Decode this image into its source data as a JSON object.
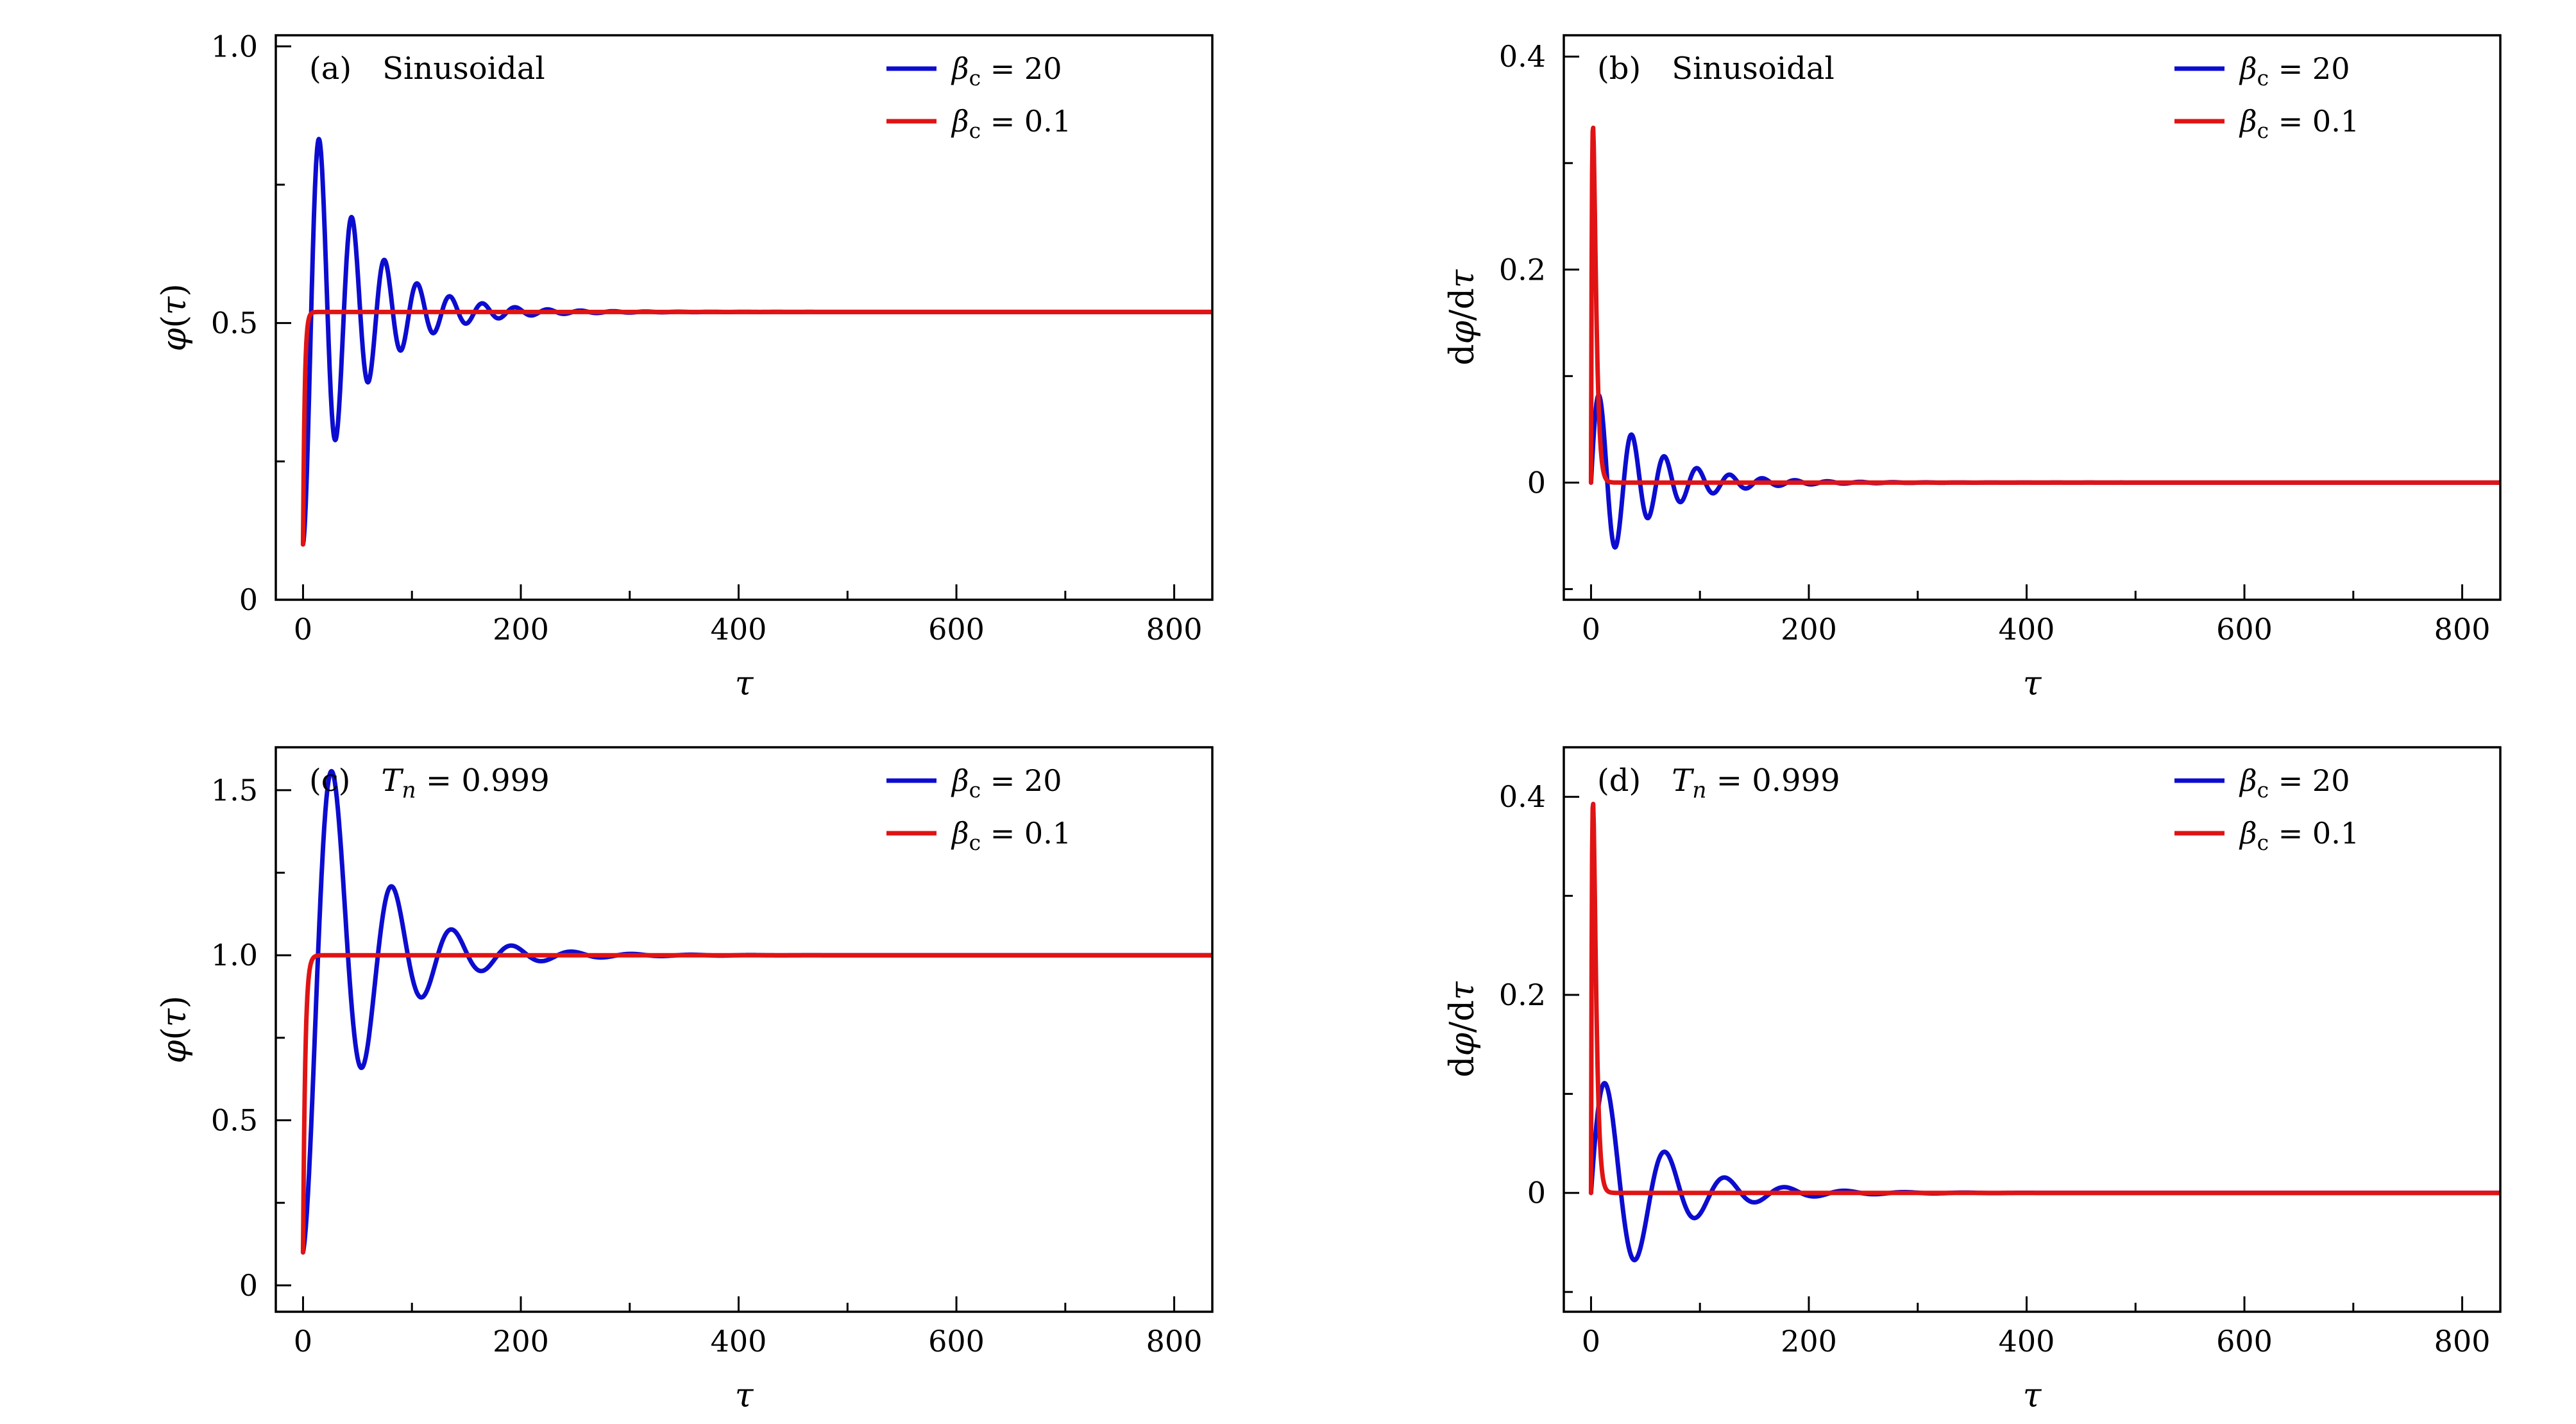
{
  "figure": {
    "background": "#ffffff",
    "description": "Four-panel line figure: phase and phase derivative versus dimensionless time for two damping parameter values",
    "colors": {
      "blue": "#0c0cd0",
      "red": "#e01414"
    }
  },
  "chart_data": [
    {
      "type": "line",
      "id": "a",
      "panel_label_text": "(a) Sinusoidal",
      "panel_label": [
        {
          "t": "(a)"
        },
        {
          "t": "Sinusoidal",
          "dx": 48
        }
      ],
      "xlabel_text": "τ",
      "xlabel": [
        {
          "t": "τ",
          "italic": true
        }
      ],
      "ylabel_text": "φ(τ)",
      "ylabel": [
        {
          "t": "φ",
          "italic": true
        },
        {
          "t": "("
        },
        {
          "t": "τ",
          "italic": true
        },
        {
          "t": ")"
        }
      ],
      "xlim": [
        -25,
        835
      ],
      "ylim": [
        0,
        1.02
      ],
      "xticks": {
        "values": [
          0,
          200,
          400,
          600,
          800
        ],
        "labels": [
          "0",
          "200",
          "400",
          "600",
          "800"
        ],
        "minor_step": 100
      },
      "yticks": {
        "values": [
          0,
          0.5,
          1.0
        ],
        "labels": [
          "0",
          "0.5",
          "1.0"
        ],
        "minor_step": 0.25
      },
      "grid": false,
      "legend": {
        "position": "upper right",
        "entries": [
          {
            "label_text": "βc = 20",
            "color": "#0c0cd0",
            "segments": [
              {
                "t": "β",
                "italic": true
              },
              {
                "t": "c",
                "sub": true
              },
              {
                "t": " = 20"
              }
            ]
          },
          {
            "label_text": "βc = 0.1",
            "color": "#e01414",
            "segments": [
              {
                "t": "β",
                "italic": true
              },
              {
                "t": "c",
                "sub": true
              },
              {
                "t": " = 0.1"
              }
            ]
          }
        ]
      },
      "series": [
        {
          "name": "beta_c = 20",
          "color": "#0c0cd0",
          "model": "damped_cos",
          "params": {
            "equilibrium": 0.52,
            "amplitude": 0.42,
            "decay": 50,
            "period": 30
          },
          "keypoints": {
            "start": [
              0,
              0.1
            ],
            "first_peak": [
              15,
              0.84
            ],
            "first_trough": [
              30,
              0.29
            ],
            "settles_to": 0.52,
            "settled_by_tau": 200
          }
        },
        {
          "name": "beta_c = 0.1",
          "color": "#e01414",
          "model": "exp_rise",
          "params": {
            "equilibrium": 0.52,
            "start": 0.1,
            "tau": 1.5
          },
          "keypoints": {
            "start": [
              0,
              0.1
            ],
            "settles_to": 0.52,
            "settled_by_tau": 8
          }
        }
      ]
    },
    {
      "type": "line",
      "id": "b",
      "panel_label_text": "(b) Sinusoidal",
      "panel_label": [
        {
          "t": "(b)"
        },
        {
          "t": "Sinusoidal",
          "dx": 48
        }
      ],
      "xlabel_text": "τ",
      "xlabel": [
        {
          "t": "τ",
          "italic": true
        }
      ],
      "ylabel_text": "dφ/dτ",
      "ylabel": [
        {
          "t": "d"
        },
        {
          "t": "φ",
          "italic": true
        },
        {
          "t": "/d"
        },
        {
          "t": "τ",
          "italic": true
        }
      ],
      "xlim": [
        -25,
        835
      ],
      "ylim": [
        -0.11,
        0.42
      ],
      "xticks": {
        "values": [
          0,
          200,
          400,
          600,
          800
        ],
        "labels": [
          "0",
          "200",
          "400",
          "600",
          "800"
        ],
        "minor_step": 100
      },
      "yticks": {
        "values": [
          0,
          0.2,
          0.4
        ],
        "labels": [
          "0",
          "0.2",
          "0.4"
        ],
        "minor_step": 0.1
      },
      "grid": false,
      "legend": {
        "position": "upper right",
        "entries": [
          {
            "label_text": "βc = 20",
            "color": "#0c0cd0",
            "segments": [
              {
                "t": "β",
                "italic": true
              },
              {
                "t": "c",
                "sub": true
              },
              {
                "t": " = 20"
              }
            ]
          },
          {
            "label_text": "βc = 0.1",
            "color": "#e01414",
            "segments": [
              {
                "t": "β",
                "italic": true
              },
              {
                "t": "c",
                "sub": true
              },
              {
                "t": " = 0.1"
              }
            ]
          }
        ]
      },
      "series": [
        {
          "name": "beta_c = 20",
          "color": "#0c0cd0",
          "model": "damped_sin",
          "params": {
            "amplitude": 0.095,
            "decay": 50,
            "period": 30
          },
          "keypoints": {
            "start": [
              0,
              0
            ],
            "first_peak": [
              7,
              0.08
            ],
            "first_trough": [
              22,
              -0.055
            ],
            "settles_to": 0,
            "settled_by_tau": 180
          }
        },
        {
          "name": "beta_c = 0.1",
          "color": "#e01414",
          "model": "pulse",
          "params": {
            "peak": 0.335,
            "peak_time": 1.8
          },
          "keypoints": {
            "start": [
              0,
              0
            ],
            "peak": [
              2,
              0.335
            ],
            "settles_to": 0,
            "settled_by_tau": 12
          }
        }
      ]
    },
    {
      "type": "line",
      "id": "c",
      "panel_label_text": "(c) Tn = 0.999",
      "panel_label": [
        {
          "t": "(c)"
        },
        {
          "t": "T",
          "italic": true,
          "dx": 48
        },
        {
          "t": "n",
          "sub": true,
          "italic": true
        },
        {
          "t": " = 0.999"
        }
      ],
      "xlabel_text": "τ",
      "xlabel": [
        {
          "t": "τ",
          "italic": true
        }
      ],
      "ylabel_text": "φ(τ)",
      "ylabel": [
        {
          "t": "φ",
          "italic": true
        },
        {
          "t": "("
        },
        {
          "t": "τ",
          "italic": true
        },
        {
          "t": ")"
        }
      ],
      "xlim": [
        -25,
        835
      ],
      "ylim": [
        -0.08,
        1.63
      ],
      "xticks": {
        "values": [
          0,
          200,
          400,
          600,
          800
        ],
        "labels": [
          "0",
          "200",
          "400",
          "600",
          "800"
        ],
        "minor_step": 100
      },
      "yticks": {
        "values": [
          0,
          0.5,
          1.0,
          1.5
        ],
        "labels": [
          "0",
          "0.5",
          "1.0",
          "1.5"
        ],
        "minor_step": 0.25
      },
      "grid": false,
      "legend": {
        "position": "upper right",
        "entries": [
          {
            "label_text": "βc = 20",
            "color": "#0c0cd0",
            "segments": [
              {
                "t": "β",
                "italic": true
              },
              {
                "t": "c",
                "sub": true
              },
              {
                "t": " = 20"
              }
            ]
          },
          {
            "label_text": "βc = 0.1",
            "color": "#e01414",
            "segments": [
              {
                "t": "β",
                "italic": true
              },
              {
                "t": "c",
                "sub": true
              },
              {
                "t": " = 0.1"
              }
            ]
          }
        ]
      },
      "series": [
        {
          "name": "beta_c = 20",
          "color": "#0c0cd0",
          "model": "damped_cos",
          "params": {
            "equilibrium": 1.0,
            "amplitude": 0.9,
            "decay": 56,
            "period": 55
          },
          "keypoints": {
            "start": [
              0,
              0.1
            ],
            "first_peak": [
              28,
              1.55
            ],
            "first_trough": [
              55,
              0.68
            ],
            "settles_to": 1.0,
            "settled_by_tau": 250
          }
        },
        {
          "name": "beta_c = 0.1",
          "color": "#e01414",
          "model": "exp_rise",
          "params": {
            "equilibrium": 1.0,
            "start": 0.1,
            "tau": 2
          },
          "keypoints": {
            "start": [
              0,
              0.1
            ],
            "settles_to": 1.0,
            "settled_by_tau": 12
          }
        }
      ]
    },
    {
      "type": "line",
      "id": "d",
      "panel_label_text": "(d) Tn = 0.999",
      "panel_label": [
        {
          "t": "(d)"
        },
        {
          "t": "T",
          "italic": true,
          "dx": 48
        },
        {
          "t": "n",
          "sub": true,
          "italic": true
        },
        {
          "t": " = 0.999"
        }
      ],
      "xlabel_text": "τ",
      "xlabel": [
        {
          "t": "τ",
          "italic": true
        }
      ],
      "ylabel_text": "dφ/dτ",
      "ylabel": [
        {
          "t": "d"
        },
        {
          "t": "φ",
          "italic": true
        },
        {
          "t": "/d"
        },
        {
          "t": "τ",
          "italic": true
        }
      ],
      "xlim": [
        -25,
        835
      ],
      "ylim": [
        -0.12,
        0.45
      ],
      "xticks": {
        "values": [
          0,
          200,
          400,
          600,
          800
        ],
        "labels": [
          "0",
          "200",
          "400",
          "600",
          "800"
        ],
        "minor_step": 100
      },
      "yticks": {
        "values": [
          0,
          0.2,
          0.4
        ],
        "labels": [
          "0",
          "0.2",
          "0.4"
        ],
        "minor_step": 0.1
      },
      "grid": false,
      "legend": {
        "position": "upper right",
        "entries": [
          {
            "label_text": "βc = 20",
            "color": "#0c0cd0",
            "segments": [
              {
                "t": "β",
                "italic": true
              },
              {
                "t": "c",
                "sub": true
              },
              {
                "t": " = 20"
              }
            ]
          },
          {
            "label_text": "βc = 0.1",
            "color": "#e01414",
            "segments": [
              {
                "t": "β",
                "italic": true
              },
              {
                "t": "c",
                "sub": true
              },
              {
                "t": " = 0.1"
              }
            ]
          }
        ]
      },
      "series": [
        {
          "name": "beta_c = 20",
          "color": "#0c0cd0",
          "model": "damped_sin",
          "params": {
            "amplitude": 0.14,
            "decay": 56,
            "period": 55
          },
          "keypoints": {
            "start": [
              0,
              0
            ],
            "first_peak": [
              14,
              0.11
            ],
            "first_trough": [
              41,
              -0.065
            ],
            "settles_to": 0,
            "settled_by_tau": 220
          }
        },
        {
          "name": "beta_c = 0.1",
          "color": "#e01414",
          "model": "pulse",
          "params": {
            "peak": 0.395,
            "peak_time": 1.8
          },
          "keypoints": {
            "start": [
              0,
              0
            ],
            "peak": [
              2,
              0.395
            ],
            "settles_to": 0,
            "settled_by_tau": 12
          }
        }
      ]
    }
  ]
}
